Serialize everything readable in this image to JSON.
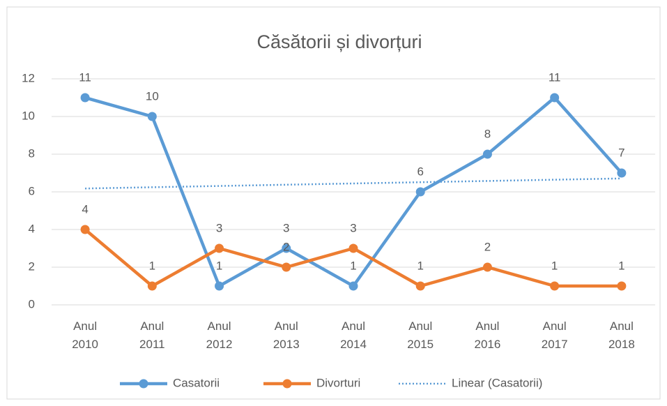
{
  "chart_data": {
    "type": "line",
    "title": "Căsătorii și divorțuri",
    "categories": [
      "Anul 2010",
      "Anul 2011",
      "Anul 2012",
      "Anul 2013",
      "Anul 2014",
      "Anul 2015",
      "Anul 2016",
      "Anul 2017",
      "Anul 2018"
    ],
    "series": [
      {
        "name": "Casatorii",
        "color": "#5b9bd5",
        "values": [
          11,
          10,
          1,
          3,
          1,
          6,
          8,
          11,
          7
        ]
      },
      {
        "name": "Divorturi",
        "color": "#ed7d31",
        "values": [
          4,
          1,
          3,
          2,
          3,
          1,
          2,
          1,
          1
        ]
      }
    ],
    "trendline": {
      "name": "Linear (Casatorii)",
      "type": "linear",
      "series": 0,
      "color": "#5b9bd5",
      "style": "dotted"
    },
    "ylim": [
      0,
      12
    ],
    "yticks": [
      0,
      2,
      4,
      6,
      8,
      10,
      12
    ],
    "grid": true,
    "data_labels": true,
    "legend": "bottom"
  }
}
